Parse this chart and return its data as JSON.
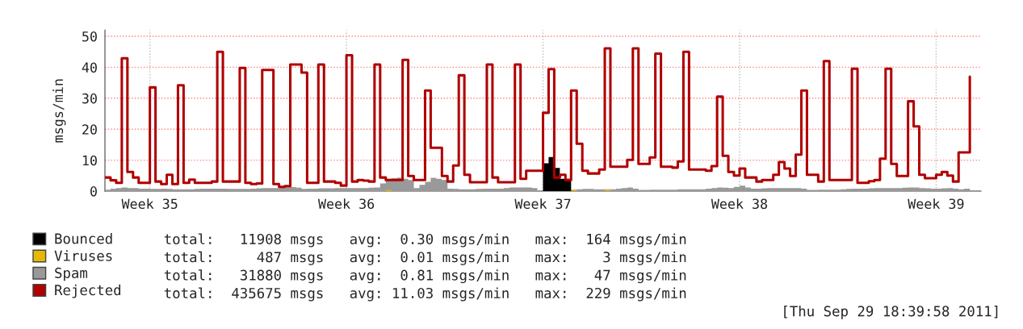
{
  "chart_data": {
    "type": "step",
    "ylabel": "msgs/min",
    "categories": [
      null,
      null,
      null,
      null,
      null,
      null,
      null,
      null,
      "Week 35",
      null,
      null,
      null,
      null,
      null,
      null,
      null,
      null,
      null,
      null,
      null,
      null,
      null,
      null,
      null,
      null,
      null,
      null,
      null,
      null,
      null,
      null,
      null,
      null,
      null,
      null,
      null,
      null,
      null,
      null,
      null,
      null,
      null,
      null,
      "Week 36",
      null,
      null,
      null,
      null,
      null,
      null,
      null,
      null,
      null,
      null,
      null,
      null,
      null,
      null,
      null,
      null,
      null,
      null,
      null,
      null,
      null,
      null,
      null,
      null,
      null,
      null,
      null,
      null,
      null,
      null,
      null,
      null,
      null,
      null,
      "Week 37",
      null,
      null,
      null,
      null,
      null,
      null,
      null,
      null,
      null,
      null,
      null,
      null,
      null,
      null,
      null,
      null,
      null,
      null,
      null,
      null,
      null,
      null,
      null,
      null,
      null,
      null,
      null,
      null,
      null,
      null,
      null,
      null,
      null,
      null,
      "Week 38",
      null,
      null,
      null,
      null,
      null,
      null,
      null,
      null,
      null,
      null,
      null,
      null,
      null,
      null,
      null,
      null,
      null,
      null,
      null,
      null,
      null,
      null,
      null,
      null,
      null,
      null,
      null,
      null,
      null,
      null,
      null,
      null,
      null,
      null,
      "Week 39",
      null,
      null,
      null,
      null,
      null,
      null,
      null
    ],
    "ylim": [
      0,
      52
    ],
    "yticks": [
      0,
      10,
      20,
      30,
      40,
      50
    ],
    "grid": true,
    "legend": "bottom",
    "series": [
      {
        "name": "Bounced",
        "type": "area",
        "color": "#000000",
        "values": [
          0,
          0,
          0,
          0,
          0,
          0,
          0,
          0,
          0,
          0,
          0,
          0,
          0,
          0,
          0,
          0,
          0,
          0,
          0,
          0,
          0,
          0,
          0,
          0,
          0,
          0,
          0,
          0,
          0,
          0,
          0,
          0,
          0,
          0,
          0,
          0,
          0,
          0,
          0,
          0,
          0,
          0,
          0,
          0,
          0,
          0,
          0,
          0,
          0,
          0,
          0,
          0,
          0,
          0,
          0,
          0,
          0,
          0,
          0,
          0,
          0,
          0,
          0,
          0,
          0,
          0,
          0,
          0,
          0,
          0,
          0,
          0,
          0,
          0,
          0,
          0,
          0,
          0,
          9,
          11,
          7.5,
          4,
          4,
          0,
          0,
          0,
          0,
          0,
          0,
          0,
          0,
          0,
          0,
          0,
          0,
          0,
          0,
          0,
          0,
          0,
          0,
          0,
          0,
          0,
          0,
          0,
          0,
          0,
          0,
          0,
          0,
          0,
          0,
          0,
          0,
          0,
          0,
          0,
          0,
          0,
          0,
          0,
          0,
          0,
          0,
          0,
          0,
          0,
          0,
          0,
          0,
          0,
          0,
          0,
          0,
          0,
          0,
          0,
          0,
          0,
          0,
          0,
          0,
          0,
          0,
          0,
          0,
          0,
          0,
          0,
          0,
          0,
          0,
          0,
          0,
          null
        ]
      },
      {
        "name": "Viruses",
        "type": "area",
        "color": "#e8b800",
        "values": [
          0,
          0,
          0,
          0,
          0,
          0,
          0,
          0,
          0,
          0,
          0,
          0,
          0,
          0,
          0,
          0,
          0,
          0,
          0,
          0,
          0,
          0,
          0,
          0,
          0,
          0,
          0,
          0,
          0,
          0,
          0,
          0,
          0,
          0,
          0,
          0,
          0,
          0,
          0,
          0,
          0,
          0,
          0,
          0,
          0,
          0,
          0,
          0,
          0,
          0,
          0.4,
          0,
          0,
          0,
          0,
          0,
          0,
          0,
          0,
          0,
          0,
          0,
          0,
          0,
          0,
          0,
          0,
          0,
          0,
          0,
          0,
          0,
          0,
          0,
          0,
          0,
          0,
          0,
          0,
          0,
          0,
          0,
          0,
          0.4,
          0,
          0,
          0,
          0,
          0,
          0.4,
          0,
          0,
          0,
          0,
          0,
          0,
          0,
          0,
          0,
          0,
          0,
          0,
          0,
          0,
          0,
          0,
          0,
          0,
          0,
          0,
          0,
          0,
          0,
          0,
          0,
          0,
          0,
          0,
          0,
          0,
          0,
          0,
          0,
          0,
          0,
          0,
          0,
          0,
          0,
          0,
          0,
          0,
          0,
          0,
          0,
          0,
          0,
          0,
          0,
          0,
          0,
          0,
          0,
          0,
          0,
          0,
          0,
          0,
          0,
          0,
          0,
          0,
          0,
          0,
          0,
          null
        ]
      },
      {
        "name": "Spam",
        "type": "area",
        "color": "#999999",
        "values": [
          0.5,
          0.8,
          1.0,
          1.2,
          1.0,
          1.0,
          0.8,
          0.8,
          0.7,
          0.7,
          0.8,
          0.7,
          0.6,
          0.6,
          0.6,
          0.6,
          0.7,
          0.8,
          0.8,
          0.8,
          0.8,
          0.8,
          0.7,
          0.7,
          0.7,
          0.7,
          0.8,
          0.9,
          1.0,
          1.0,
          1.0,
          1.1,
          1.2,
          1.3,
          1.1,
          0.7,
          0.8,
          0.8,
          0.9,
          0.9,
          0.9,
          1.0,
          1.0,
          1.0,
          1.0,
          1.0,
          1.0,
          1.1,
          1.2,
          2.5,
          4.0,
          4.2,
          4.4,
          4.0,
          3.6,
          1.0,
          2.0,
          3.0,
          4.3,
          4.0,
          3.6,
          0.8,
          0.7,
          0.6,
          0.6,
          0.6,
          0.7,
          0.8,
          0.8,
          0.8,
          0.8,
          1.0,
          1.2,
          1.2,
          1.2,
          1.2,
          1.0,
          0.8,
          null,
          null,
          null,
          null,
          null,
          0.5,
          0.6,
          0.7,
          0.7,
          0.6,
          0.6,
          0.6,
          0.6,
          0.8,
          1.0,
          1.2,
          0.8,
          0.4,
          0.4,
          0.5,
          0.5,
          0.5,
          0.5,
          0.5,
          0.6,
          0.6,
          0.6,
          0.6,
          0.6,
          0.8,
          1.0,
          1.2,
          1.1,
          1.0,
          1.4,
          1.8,
          1.2,
          0.8,
          0.8,
          0.9,
          1.0,
          1.0,
          1.0,
          1.0,
          1.0,
          1.0,
          0.8,
          0.4,
          0.4,
          0.5,
          0.5,
          0.5,
          0.5,
          0.6,
          0.7,
          0.8,
          0.8,
          0.8,
          0.9,
          1.0,
          1.0,
          1.0,
          1.0,
          1.0,
          1.1,
          1.2,
          1.2,
          1.0,
          0.9,
          0.8,
          0.8,
          0.9,
          1.0,
          0.8,
          0.6,
          0.8,
          1.2,
          null
        ]
      },
      {
        "name": "Rejected",
        "color": "#b00000",
        "values": [
          4.4,
          3.5,
          2.7,
          42.9,
          6.2,
          4.4,
          2.7,
          2.7,
          33.5,
          3.1,
          2.3,
          5.3,
          2.3,
          34.2,
          2.7,
          3.7,
          2.7,
          2.7,
          2.7,
          3.1,
          45,
          3.1,
          3.1,
          3.1,
          39.8,
          2.7,
          2.3,
          2.5,
          39.1,
          39.1,
          2.3,
          1.4,
          1.6,
          40.9,
          40.9,
          38.3,
          2.7,
          2.7,
          40.9,
          3.1,
          3.1,
          2.7,
          1.8,
          43.9,
          3.1,
          3.6,
          3.4,
          3.1,
          40.9,
          4.4,
          3.6,
          3.6,
          3.6,
          42.4,
          4.9,
          3.6,
          3.6,
          32.5,
          14,
          14,
          4.9,
          3.1,
          8.3,
          37.4,
          5.3,
          2.9,
          2.9,
          2.9,
          40.9,
          4.4,
          2.9,
          2.9,
          2.9,
          40.9,
          4.0,
          6.6,
          6.6,
          6.6,
          25.3,
          39.4,
          4.4,
          5.3,
          3.6,
          32.5,
          15.3,
          6.6,
          5.7,
          5.7,
          7.0,
          46.1,
          7.9,
          7.9,
          7.9,
          10.1,
          46.1,
          8.8,
          8.8,
          10.9,
          44.4,
          7.9,
          7.9,
          7.6,
          9.6,
          45,
          7.0,
          7.0,
          7.0,
          6.6,
          8.1,
          30.5,
          11.4,
          6.2,
          5.0,
          7.3,
          4.4,
          4.4,
          3.1,
          3.6,
          3.6,
          5.3,
          9.4,
          7.3,
          4.9,
          11.8,
          32.5,
          5.3,
          5.3,
          3.1,
          42,
          3.6,
          3.6,
          3.6,
          3.6,
          39.5,
          2.7,
          2.7,
          3.2,
          3.6,
          10.5,
          39.5,
          8.8,
          4.9,
          4.9,
          29,
          20.9,
          5.3,
          4.2,
          4.2,
          5.3,
          6.2,
          5.0,
          3.1,
          12.5,
          12.5,
          37,
          null
        ]
      }
    ],
    "annotations": [
      "total:   11908 msgs   avg:  0.30 msgs/min   max:  164 msgs/min",
      "total:     487 msgs   avg:  0.01 msgs/min   max:    3 msgs/min",
      "total:   31880 msgs   avg:  0.81 msgs/min   max:   47 msgs/min",
      "total:  435675 msgs   avg: 11.03 msgs/min   max:  229 msgs/min",
      "[Thu Sep 29 18:39:58 2011]"
    ]
  }
}
